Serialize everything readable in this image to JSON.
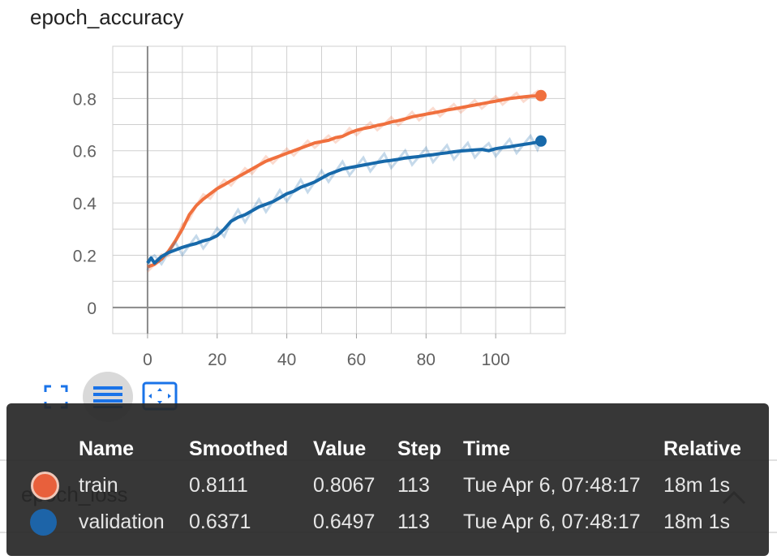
{
  "chart": {
    "title": "epoch_accuracy"
  },
  "chart_data": {
    "type": "line",
    "title": "epoch_accuracy",
    "xlabel": "",
    "ylabel": "",
    "xlim": [
      -10,
      120
    ],
    "ylim": [
      -0.1,
      1.0
    ],
    "xticks": [
      0,
      20,
      40,
      60,
      80,
      100
    ],
    "yticks": [
      0,
      0.2,
      0.4,
      0.6,
      0.8
    ],
    "xtick_labels": [
      "0",
      "20",
      "40",
      "60",
      "80",
      "100"
    ],
    "ytick_labels": [
      "0",
      "0.2",
      "0.4",
      "0.6",
      "0.8"
    ],
    "grid": true,
    "series": [
      {
        "name": "train",
        "color": "#f0703e",
        "smoothed": [
          [
            0,
            0.155
          ],
          [
            2,
            0.165
          ],
          [
            4,
            0.185
          ],
          [
            6,
            0.215
          ],
          [
            8,
            0.255
          ],
          [
            10,
            0.3
          ],
          [
            12,
            0.355
          ],
          [
            14,
            0.39
          ],
          [
            16,
            0.415
          ],
          [
            18,
            0.435
          ],
          [
            20,
            0.455
          ],
          [
            22,
            0.47
          ],
          [
            24,
            0.485
          ],
          [
            26,
            0.5
          ],
          [
            28,
            0.515
          ],
          [
            30,
            0.53
          ],
          [
            32,
            0.545
          ],
          [
            34,
            0.56
          ],
          [
            36,
            0.57
          ],
          [
            38,
            0.58
          ],
          [
            40,
            0.59
          ],
          [
            42,
            0.6
          ],
          [
            44,
            0.61
          ],
          [
            46,
            0.62
          ],
          [
            48,
            0.63
          ],
          [
            50,
            0.635
          ],
          [
            52,
            0.64
          ],
          [
            54,
            0.65
          ],
          [
            56,
            0.655
          ],
          [
            58,
            0.668
          ],
          [
            60,
            0.678
          ],
          [
            62,
            0.685
          ],
          [
            64,
            0.69
          ],
          [
            66,
            0.697
          ],
          [
            68,
            0.702
          ],
          [
            70,
            0.71
          ],
          [
            72,
            0.715
          ],
          [
            74,
            0.722
          ],
          [
            76,
            0.73
          ],
          [
            78,
            0.735
          ],
          [
            80,
            0.74
          ],
          [
            82,
            0.745
          ],
          [
            84,
            0.75
          ],
          [
            86,
            0.756
          ],
          [
            88,
            0.76
          ],
          [
            90,
            0.765
          ],
          [
            92,
            0.77
          ],
          [
            94,
            0.775
          ],
          [
            96,
            0.78
          ],
          [
            98,
            0.785
          ],
          [
            100,
            0.79
          ],
          [
            102,
            0.795
          ],
          [
            104,
            0.8
          ],
          [
            106,
            0.803
          ],
          [
            108,
            0.806
          ],
          [
            110,
            0.809
          ],
          [
            112,
            0.81
          ],
          [
            113,
            0.8111
          ]
        ],
        "last": {
          "smoothed": "0.8111",
          "value": "0.8067",
          "step": "113",
          "time": "Tue Apr 6, 07:48:17",
          "relative": "18m 1s"
        }
      },
      {
        "name": "validation",
        "color": "#1769aa",
        "smoothed": [
          [
            0,
            0.17
          ],
          [
            1,
            0.19
          ],
          [
            2,
            0.17
          ],
          [
            4,
            0.195
          ],
          [
            6,
            0.21
          ],
          [
            8,
            0.22
          ],
          [
            10,
            0.23
          ],
          [
            12,
            0.238
          ],
          [
            14,
            0.245
          ],
          [
            16,
            0.255
          ],
          [
            18,
            0.262
          ],
          [
            20,
            0.275
          ],
          [
            22,
            0.3
          ],
          [
            24,
            0.33
          ],
          [
            26,
            0.345
          ],
          [
            28,
            0.355
          ],
          [
            30,
            0.37
          ],
          [
            32,
            0.385
          ],
          [
            34,
            0.395
          ],
          [
            36,
            0.405
          ],
          [
            38,
            0.42
          ],
          [
            40,
            0.435
          ],
          [
            42,
            0.445
          ],
          [
            44,
            0.46
          ],
          [
            46,
            0.47
          ],
          [
            48,
            0.48
          ],
          [
            50,
            0.495
          ],
          [
            52,
            0.51
          ],
          [
            54,
            0.52
          ],
          [
            56,
            0.53
          ],
          [
            58,
            0.535
          ],
          [
            60,
            0.54
          ],
          [
            62,
            0.545
          ],
          [
            64,
            0.55
          ],
          [
            66,
            0.555
          ],
          [
            68,
            0.56
          ],
          [
            70,
            0.563
          ],
          [
            72,
            0.567
          ],
          [
            74,
            0.572
          ],
          [
            76,
            0.575
          ],
          [
            78,
            0.578
          ],
          [
            80,
            0.582
          ],
          [
            82,
            0.585
          ],
          [
            84,
            0.589
          ],
          [
            86,
            0.592
          ],
          [
            88,
            0.596
          ],
          [
            90,
            0.599
          ],
          [
            92,
            0.601
          ],
          [
            94,
            0.603
          ],
          [
            96,
            0.605
          ],
          [
            98,
            0.6
          ],
          [
            100,
            0.608
          ],
          [
            102,
            0.612
          ],
          [
            104,
            0.615
          ],
          [
            106,
            0.62
          ],
          [
            108,
            0.624
          ],
          [
            110,
            0.628
          ],
          [
            112,
            0.633
          ],
          [
            113,
            0.6371
          ]
        ],
        "last": {
          "smoothed": "0.6371",
          "value": "0.6497",
          "step": "113",
          "time": "Tue Apr 6, 07:48:17",
          "relative": "18m 1s"
        }
      }
    ]
  },
  "toolbar": {
    "fullscreen_icon": "fullscreen-icon",
    "log_scale_icon": "lines-icon",
    "fit_domain_icon": "fit-domain-icon"
  },
  "next_card": {
    "title": "epoch_loss"
  },
  "tooltip": {
    "headers": {
      "name": "Name",
      "smoothed": "Smoothed",
      "value": "Value",
      "step": "Step",
      "time": "Time",
      "relative": "Relative"
    },
    "rows": [
      {
        "name": "train",
        "smoothed": "0.8111",
        "value": "0.8067",
        "step": "113",
        "time": "Tue Apr 6, 07:48:17",
        "relative": "18m 1s",
        "color": "#e8603c"
      },
      {
        "name": "validation",
        "smoothed": "0.6371",
        "value": "0.6497",
        "step": "113",
        "time": "Tue Apr 6, 07:48:17",
        "relative": "18m 1s",
        "color": "#1d64a8"
      }
    ]
  }
}
